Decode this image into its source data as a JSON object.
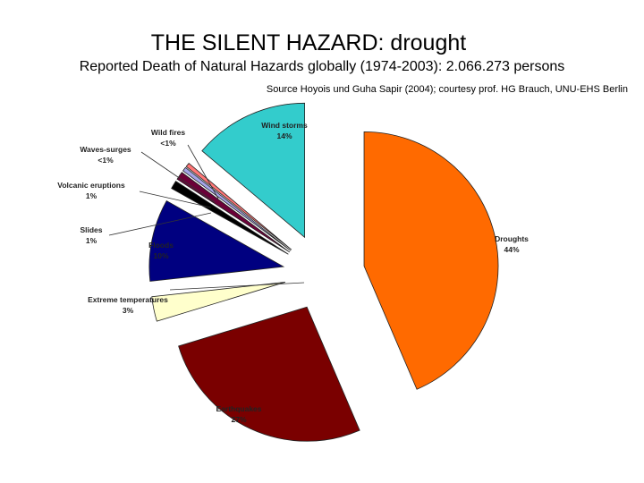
{
  "page": {
    "title": "THE SILENT HAZARD: drought",
    "subtitle": "Reported Death of Natural Hazards globally (1974-2003): 2.066.273 persons",
    "source": "Source Hoyois und Guha Sapir (2004); courtesy prof. HG Brauch, UNU-EHS Berlin"
  },
  "chart_data": {
    "type": "pie",
    "title": "",
    "slices": [
      {
        "name": "Droughts",
        "percent_label": "44%",
        "value": 44,
        "color": "#ff6a00"
      },
      {
        "name": "Earthquakes",
        "percent_label": "27%",
        "value": 27,
        "color": "#7a0000"
      },
      {
        "name": "Extreme temperatures",
        "percent_label": "3%",
        "value": 3,
        "color": "#ffffcc"
      },
      {
        "name": "Floods",
        "percent_label": "10%",
        "value": 10,
        "color": "#000080"
      },
      {
        "name": "Slides",
        "percent_label": "1%",
        "value": 1,
        "color": "#000000"
      },
      {
        "name": "Volcanic eruptions",
        "percent_label": "1%",
        "value": 1,
        "color": "#6b0038"
      },
      {
        "name": "Waves-surges",
        "percent_label": "<1%",
        "value": 0.5,
        "color": "#a4a4e8"
      },
      {
        "name": "Wild fires",
        "percent_label": "<1%",
        "value": 0.5,
        "color": "#ff7777"
      },
      {
        "name": "Wind storms",
        "percent_label": "14%",
        "value": 14,
        "color": "#33cccc"
      }
    ]
  }
}
